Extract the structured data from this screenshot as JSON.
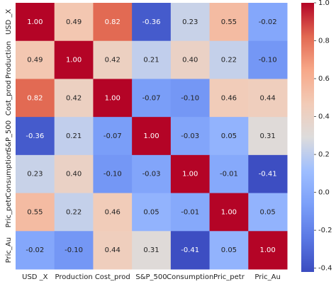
{
  "chart_data": {
    "type": "heatmap",
    "colormap": "coolwarm",
    "x_categories": [
      "USD _X",
      "Production",
      "Cost_prod",
      "S&P_500",
      "Consumption",
      "Pric_petr",
      "Pric_Au"
    ],
    "y_categories": [
      "USD _X",
      "Production",
      "Cost_prod",
      "S&P_500",
      "Consumption",
      "Pric_petr",
      "Pric_Au"
    ],
    "values": [
      [
        1.0,
        0.49,
        0.82,
        -0.36,
        0.23,
        0.55,
        -0.02
      ],
      [
        0.49,
        1.0,
        0.42,
        0.21,
        0.4,
        0.22,
        -0.1
      ],
      [
        0.82,
        0.42,
        1.0,
        -0.07,
        -0.1,
        0.46,
        0.44
      ],
      [
        -0.36,
        0.21,
        -0.07,
        1.0,
        -0.03,
        0.05,
        0.31
      ],
      [
        0.23,
        0.4,
        -0.1,
        -0.03,
        1.0,
        -0.01,
        -0.41
      ],
      [
        0.55,
        0.22,
        0.46,
        0.05,
        -0.01,
        1.0,
        0.05
      ],
      [
        -0.02,
        -0.1,
        0.44,
        0.31,
        -0.41,
        0.05,
        1.0
      ]
    ],
    "value_labels": [
      [
        "1.00",
        "0.49",
        "0.82",
        "-0.36",
        "0.23",
        "0.55",
        "-0.02"
      ],
      [
        "0.49",
        "1.00",
        "0.42",
        "0.21",
        "0.40",
        "0.22",
        "-0.10"
      ],
      [
        "0.82",
        "0.42",
        "1.00",
        "-0.07",
        "-0.10",
        "0.46",
        "0.44"
      ],
      [
        "-0.36",
        "0.21",
        "-0.07",
        "1.00",
        "-0.03",
        "0.05",
        "0.31"
      ],
      [
        "0.23",
        "0.40",
        "-0.10",
        "-0.03",
        "1.00",
        "-0.01",
        "-0.41"
      ],
      [
        "0.55",
        "0.22",
        "0.46",
        "0.05",
        "-0.01",
        "1.00",
        "0.05"
      ],
      [
        "-0.02",
        "-0.10",
        "0.44",
        "0.31",
        "-0.41",
        "0.05",
        "1.00"
      ]
    ],
    "zlim": [
      -0.42,
      1.0
    ],
    "zticks": [
      {
        "value": 1.0,
        "label": "1.0"
      },
      0.8,
      0.6,
      0.4,
      0.2,
      {
        "value": 0.0,
        "label": "0.0"
      },
      -0.2,
      -0.4
    ]
  }
}
